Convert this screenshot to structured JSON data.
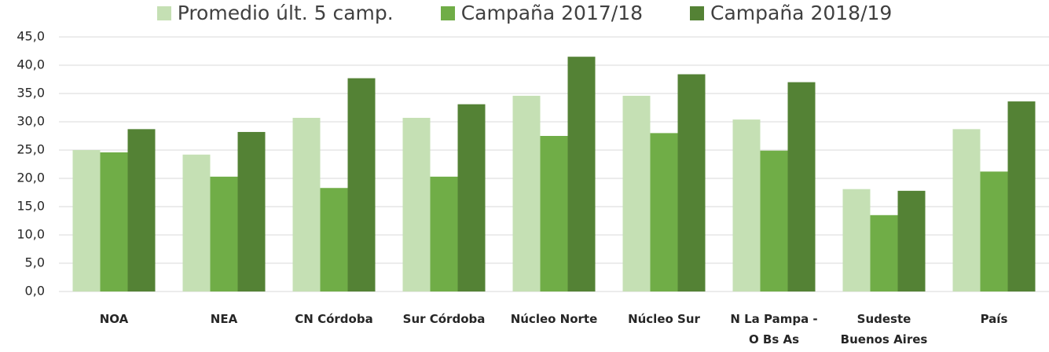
{
  "chart_data": {
    "type": "bar",
    "categories": [
      "NOA",
      "NEA",
      "CN Córdoba",
      "Sur Córdoba",
      "Núcleo Norte",
      "Núcleo Sur",
      "N La Pampa -\nO Bs As",
      "Sudeste\nBuenos Aires",
      "País"
    ],
    "series": [
      {
        "name": "Promedio últ. 5 camp.",
        "color": "#c5e0b4",
        "values": [
          25.0,
          24.2,
          30.7,
          30.7,
          34.6,
          34.6,
          30.4,
          18.1,
          28.7
        ]
      },
      {
        "name": "Campaña 2017/18",
        "color": "#70ad47",
        "values": [
          24.6,
          20.3,
          18.3,
          20.3,
          27.5,
          28.0,
          24.9,
          13.5,
          21.2
        ]
      },
      {
        "name": "Campaña 2018/19",
        "color": "#548235",
        "values": [
          28.7,
          28.2,
          37.7,
          33.1,
          41.5,
          38.4,
          37.0,
          17.8,
          33.6
        ]
      }
    ],
    "ylim": [
      0,
      45
    ],
    "yticks": [
      {
        "value": 0,
        "label": "0,0"
      },
      {
        "value": 5,
        "label": "5,0"
      },
      {
        "value": 10,
        "label": "10,0"
      },
      {
        "value": 15,
        "label": "15,0"
      },
      {
        "value": 20,
        "label": "20,0"
      },
      {
        "value": 25,
        "label": "25,0"
      },
      {
        "value": 30,
        "label": "30,0"
      },
      {
        "value": 35,
        "label": "35,0"
      },
      {
        "value": 40,
        "label": "40,0"
      },
      {
        "value": 45,
        "label": "45,0"
      }
    ],
    "grid": true,
    "legend": "top"
  }
}
